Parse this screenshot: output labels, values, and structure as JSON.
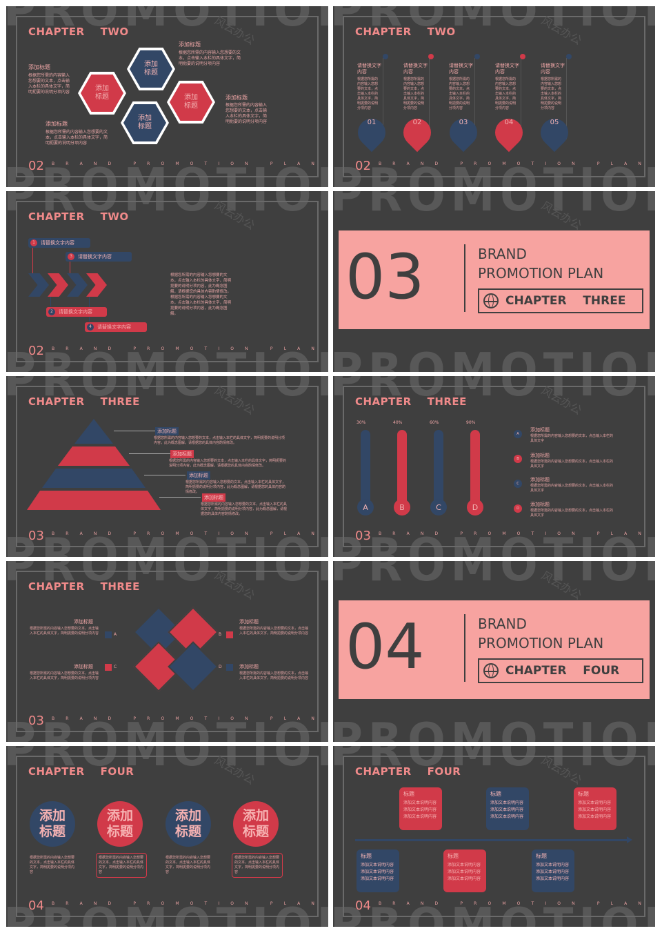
{
  "common": {
    "bg_word": "PROMOTION",
    "brand_letters": [
      "B",
      "R",
      "A",
      "N",
      "D",
      "",
      "P",
      "R",
      "O",
      "M",
      "O",
      "T",
      "I",
      "O",
      "N",
      "",
      "P",
      "L",
      "A",
      "N"
    ],
    "watermark": "风云办公",
    "placeholder_text": "根据您所需的内容输入您想要的文本，点击输入本栏的具体文字，简明扼要的说明分项内容",
    "colors": {
      "bg": "#3f3f3f",
      "navy": "#324766",
      "red": "#d13a49",
      "pink": "#f7a3a0",
      "accent_text": "#f08a8a"
    }
  },
  "slides": [
    {
      "title": "CHAPTER    TWO",
      "page": "02",
      "labels": [
        "添加标题",
        "添加标题",
        "添加标题",
        "添加标题"
      ],
      "hexes": [
        "添加\n标题",
        "添加\n标题",
        "添加\n标题",
        "添加\n标题"
      ]
    },
    {
      "title": "CHAPTER    TWO",
      "page": "02",
      "col_title": "请替换文字内容",
      "col_text": "根据您所需的内容输入您想要的文本，点击输入本栏的具体文字，简明扼要的说明分项内容",
      "drops": [
        "01",
        "02",
        "03",
        "04",
        "05"
      ]
    },
    {
      "title": "CHAPTER    TWO",
      "page": "02",
      "pills": [
        {
          "num": "1",
          "text": "请替换文字内容"
        },
        {
          "num": "3",
          "text": "请替换文字内容"
        },
        {
          "num": "2",
          "text": "请替换文字内容"
        },
        {
          "num": "4",
          "text": "请替换文字内容"
        }
      ],
      "body": "根据您所需的内容输入您想要的文本，点击输入本栏的具体文字，简明扼要的说明分项内容，此为概念图解，请根据您的具体内容酌情修改。根据您所需的内容输入您想要的文本，点击输入本栏的具体文字，简明扼要的说明分项内容，此为概念图解。"
    },
    {
      "number": "03",
      "line1": "BRAND",
      "line2": "PROMOTION PLAN",
      "chapter": "CHAPTER    THREE"
    },
    {
      "title": "CHAPTER    THREE",
      "page": "03",
      "tags": [
        "添加标题",
        "添加标题",
        "添加标题",
        "添加标题"
      ],
      "tag_text": "根据您所需的内容输入您想要的文本，点击输入本栏的具体文字，简明扼要的说明分项内容，此为概念图解，请根据您的具体内容酌情修改。"
    },
    {
      "title": "CHAPTER    THREE",
      "page": "03",
      "bars": [
        {
          "label": "A",
          "pct": "30%",
          "value": 0.3
        },
        {
          "label": "B",
          "pct": "40%",
          "value": 0.4
        },
        {
          "label": "C",
          "pct": "60%",
          "value": 0.6
        },
        {
          "label": "D",
          "pct": "90%",
          "value": 0.9
        }
      ],
      "items": [
        {
          "letter": "A",
          "title": "添加标题",
          "text": "根据您所需的内容输入您想要的文本，点击输入本栏的具体文字"
        },
        {
          "letter": "B",
          "title": "添加标题",
          "text": "根据您所需的内容输入您想要的文本，点击输入本栏的具体文字"
        },
        {
          "letter": "C",
          "title": "添加标题",
          "text": "根据您所需的内容输入您想要的文本，点击输入本栏的具体文字"
        },
        {
          "letter": "D",
          "title": "添加标题",
          "text": "根据您所需的内容输入您想要的文本，点击输入本栏的具体文字"
        }
      ]
    },
    {
      "title": "CHAPTER    THREE",
      "page": "03",
      "quads": [
        {
          "letter": "A",
          "title": "添加标题"
        },
        {
          "letter": "B",
          "title": "添加标题"
        },
        {
          "letter": "C",
          "title": "添加标题"
        },
        {
          "letter": "D",
          "title": "添加标题"
        }
      ],
      "quad_text": "根据您所需的内容输入您想要的文本，点击输入本栏的具体文字，简明扼要的说明分项内容"
    },
    {
      "number": "04",
      "line1": "BRAND",
      "line2": "PROMOTION PLAN",
      "chapter": "CHAPTER    FOUR"
    },
    {
      "title": "CHAPTER    FOUR",
      "page": "04",
      "circles": [
        "添加\n标题",
        "添加\n标题",
        "添加\n标题",
        "添加\n标题"
      ],
      "circle_text": "根据您所需的内容输入您想要的文本，点击输入本栏的具体文字，简明扼要的说明分项内容"
    },
    {
      "title": "CHAPTER    FOUR",
      "page": "04",
      "card_head": "标题",
      "card_line": "添加文本说明内容"
    }
  ]
}
